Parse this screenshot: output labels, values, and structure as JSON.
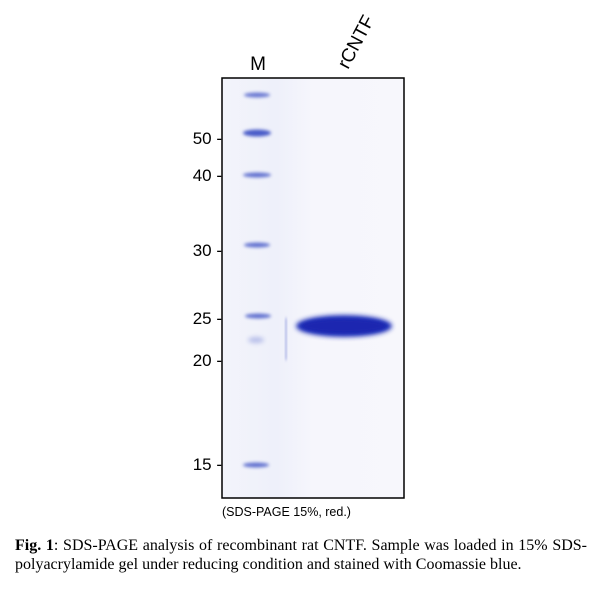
{
  "figure": {
    "lanes": [
      "M",
      "rCNTF"
    ],
    "markers": [
      "50 -",
      "40 -",
      "30 -",
      "25 -",
      "20 -",
      "15 -"
    ],
    "gel_note": "(SDS-PAGE 15%, red.)",
    "caption": {
      "label": "Fig. 1",
      "text": ": SDS-PAGE analysis of recombinant rat CNTF. Sample was loaded in 15% SDS-polyacrylamide gel under reducing condition and stained with Coomassie blue."
    }
  }
}
